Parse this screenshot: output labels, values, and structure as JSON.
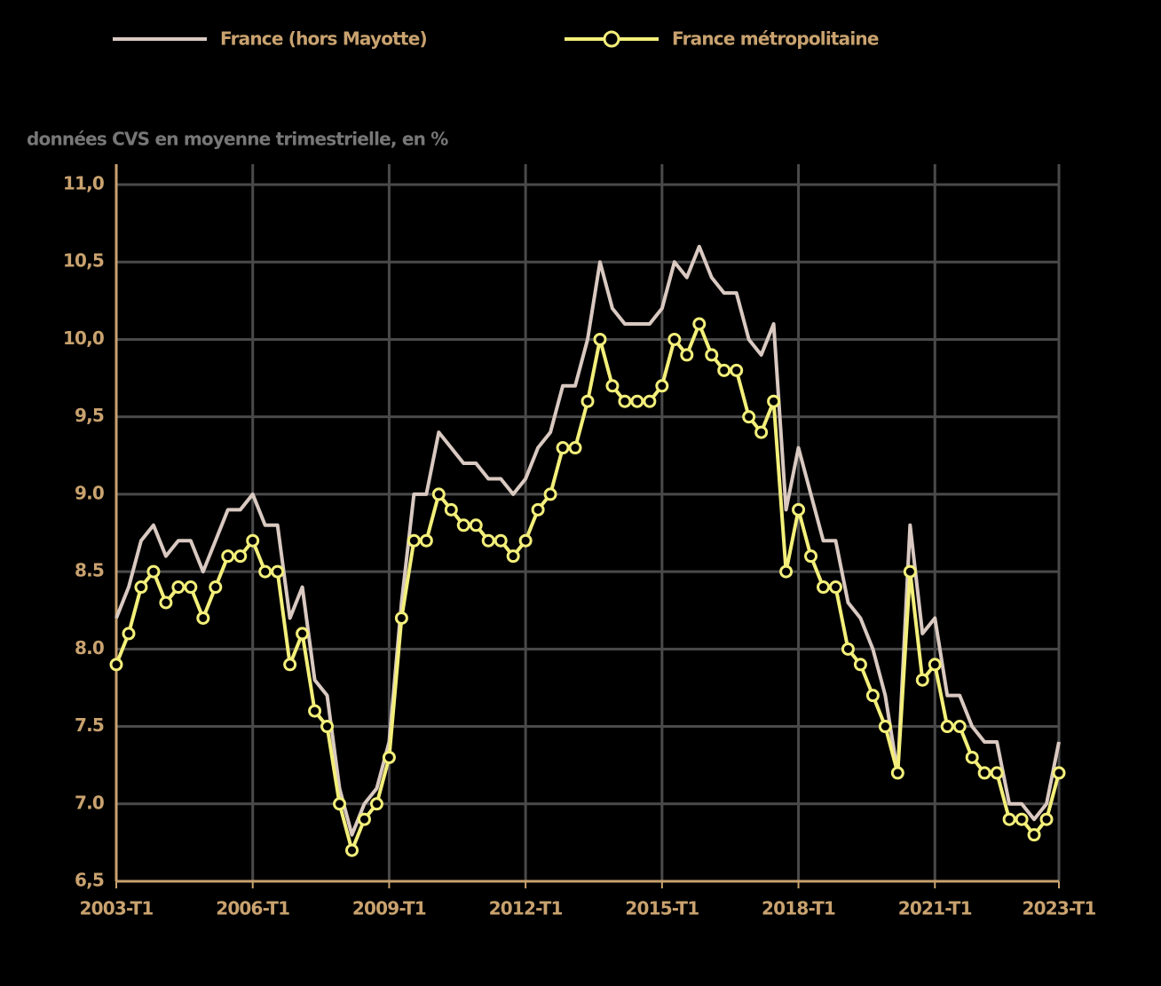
{
  "chart_data": {
    "type": "line",
    "subtitle": "données CVS en moyenne trimestrielle, en %",
    "categories": [
      "2003-T1",
      null,
      null,
      null,
      null,
      null,
      null,
      null,
      null,
      null,
      null,
      "2006-T1",
      null,
      null,
      null,
      null,
      null,
      null,
      null,
      null,
      null,
      null,
      "2009-T1",
      null,
      null,
      null,
      null,
      null,
      null,
      null,
      null,
      null,
      null,
      "2012-T1",
      null,
      null,
      null,
      null,
      null,
      null,
      null,
      null,
      null,
      null,
      "2015-T1",
      null,
      null,
      null,
      null,
      null,
      null,
      null,
      null,
      null,
      null,
      "2018-T1",
      null,
      null,
      null,
      null,
      null,
      null,
      null,
      null,
      null,
      null,
      "2021-T1",
      null,
      null,
      null,
      null,
      null,
      null,
      null,
      null,
      null,
      "2023-T1"
    ],
    "series": [
      {
        "name": "France (hors Mayotte)",
        "color": "#d9c9c1",
        "markers": false,
        "values": [
          8.2,
          8.4,
          8.7,
          8.8,
          8.6,
          8.7,
          8.7,
          8.5,
          8.7,
          8.9,
          8.9,
          9.0,
          8.8,
          8.8,
          8.2,
          8.4,
          7.8,
          7.7,
          7.1,
          6.8,
          7.0,
          7.1,
          7.4,
          8.3,
          9.0,
          9.0,
          9.4,
          9.3,
          9.2,
          9.2,
          9.1,
          9.1,
          9.0,
          9.1,
          9.3,
          9.4,
          9.7,
          9.7,
          10.0,
          10.5,
          10.2,
          10.1,
          10.1,
          10.1,
          10.2,
          10.5,
          10.4,
          10.6,
          10.4,
          10.3,
          10.3,
          10.0,
          9.9,
          10.1,
          8.9,
          9.3,
          9.0,
          8.7,
          8.7,
          8.3,
          8.2,
          8.0,
          7.7,
          7.2,
          8.8,
          8.1,
          8.2,
          7.7,
          7.7,
          7.5,
          7.4,
          7.4,
          7.0,
          7.0,
          6.9,
          7.0,
          7.4
        ]
      },
      {
        "name": "France métropolitaine",
        "color": "#f3ef7a",
        "markers": true,
        "values": [
          7.9,
          8.1,
          8.4,
          8.5,
          8.3,
          8.4,
          8.4,
          8.2,
          8.4,
          8.6,
          8.6,
          8.7,
          8.5,
          8.5,
          7.9,
          8.1,
          7.6,
          7.5,
          7.0,
          6.7,
          6.9,
          7.0,
          7.3,
          8.2,
          8.7,
          8.7,
          9.0,
          8.9,
          8.8,
          8.8,
          8.7,
          8.7,
          8.6,
          8.7,
          8.9,
          9.0,
          9.3,
          9.3,
          9.6,
          10.0,
          9.7,
          9.6,
          9.6,
          9.6,
          9.7,
          10.0,
          9.9,
          10.1,
          9.9,
          9.8,
          9.8,
          9.5,
          9.4,
          9.6,
          8.5,
          8.9,
          8.6,
          8.4,
          8.4,
          8.0,
          7.9,
          7.7,
          7.5,
          7.2,
          8.5,
          7.8,
          7.9,
          7.5,
          7.5,
          7.3,
          7.2,
          7.2,
          6.9,
          6.9,
          6.8,
          6.9,
          7.2
        ]
      }
    ],
    "ylim": [
      6.5,
      11
    ],
    "yticks": [
      {
        "value": 6.5,
        "label": "6,5"
      },
      {
        "value": 7,
        "label": "7.0"
      },
      7.5,
      {
        "value": 8,
        "label": "8.0"
      },
      8.5,
      {
        "value": 9,
        "label": "9.0"
      },
      {
        "value": 9.5,
        "label": "9,5"
      },
      {
        "value": 10,
        "label": "10,0"
      },
      {
        "value": 10.5,
        "label": "10,5"
      },
      {
        "value": 11,
        "label": "11,0"
      }
    ],
    "grid": true,
    "legend": "top",
    "axis_color": "#c9a26f"
  }
}
